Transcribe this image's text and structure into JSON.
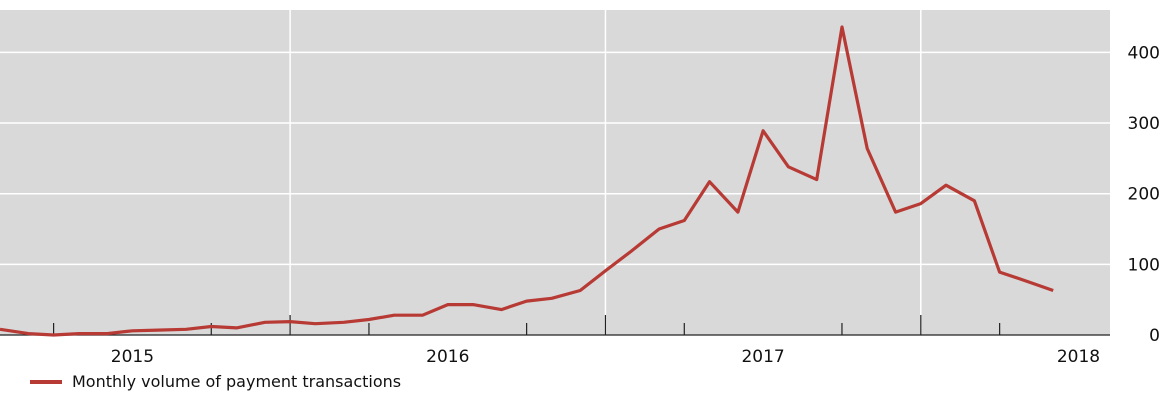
{
  "chart_data": {
    "type": "line",
    "title": "",
    "xlabel": "",
    "ylabel": "",
    "ylim": [
      0,
      460
    ],
    "y_ticks": [
      0,
      100,
      200,
      300,
      400
    ],
    "y_tick_labels": [
      "0",
      "100",
      "200",
      "300",
      "400"
    ],
    "x_tick_labels": [
      "2015",
      "2016",
      "2017",
      "2018"
    ],
    "x_tick_positions": [
      2015.0,
      2016.0,
      2017.0,
      2018.0
    ],
    "xlim": [
      2014.58,
      2018.1
    ],
    "grid": true,
    "legend_position": "bottom-left",
    "series": [
      {
        "name": "Monthly volume of payment transactions",
        "x": [
          2014.58,
          2014.67,
          2014.75,
          2014.83,
          2014.92,
          2015.0,
          2015.08,
          2015.17,
          2015.25,
          2015.33,
          2015.42,
          2015.5,
          2015.58,
          2015.67,
          2015.75,
          2015.83,
          2015.92,
          2016.0,
          2016.08,
          2016.17,
          2016.25,
          2016.33,
          2016.42,
          2016.5,
          2016.58,
          2016.67,
          2016.75,
          2016.83,
          2016.92,
          2017.0,
          2017.08,
          2017.17,
          2017.25,
          2017.33,
          2017.42,
          2017.5,
          2017.58,
          2017.67,
          2017.75,
          2017.83,
          2017.92
        ],
        "y": [
          8,
          2,
          0,
          2,
          2,
          6,
          7,
          8,
          12,
          10,
          18,
          19,
          16,
          18,
          22,
          28,
          28,
          43,
          43,
          36,
          48,
          52,
          63,
          91,
          118,
          150,
          162,
          217,
          174,
          289,
          238,
          220,
          436,
          264,
          174,
          186,
          212,
          190,
          89,
          77,
          63
        ]
      }
    ]
  },
  "colors": {
    "plot_background": "#d9d9d9",
    "grid": "#ffffff",
    "series_line": "#b73a35",
    "axis": "#222222"
  },
  "legend": {
    "label": "Monthly volume of payment transactions"
  }
}
